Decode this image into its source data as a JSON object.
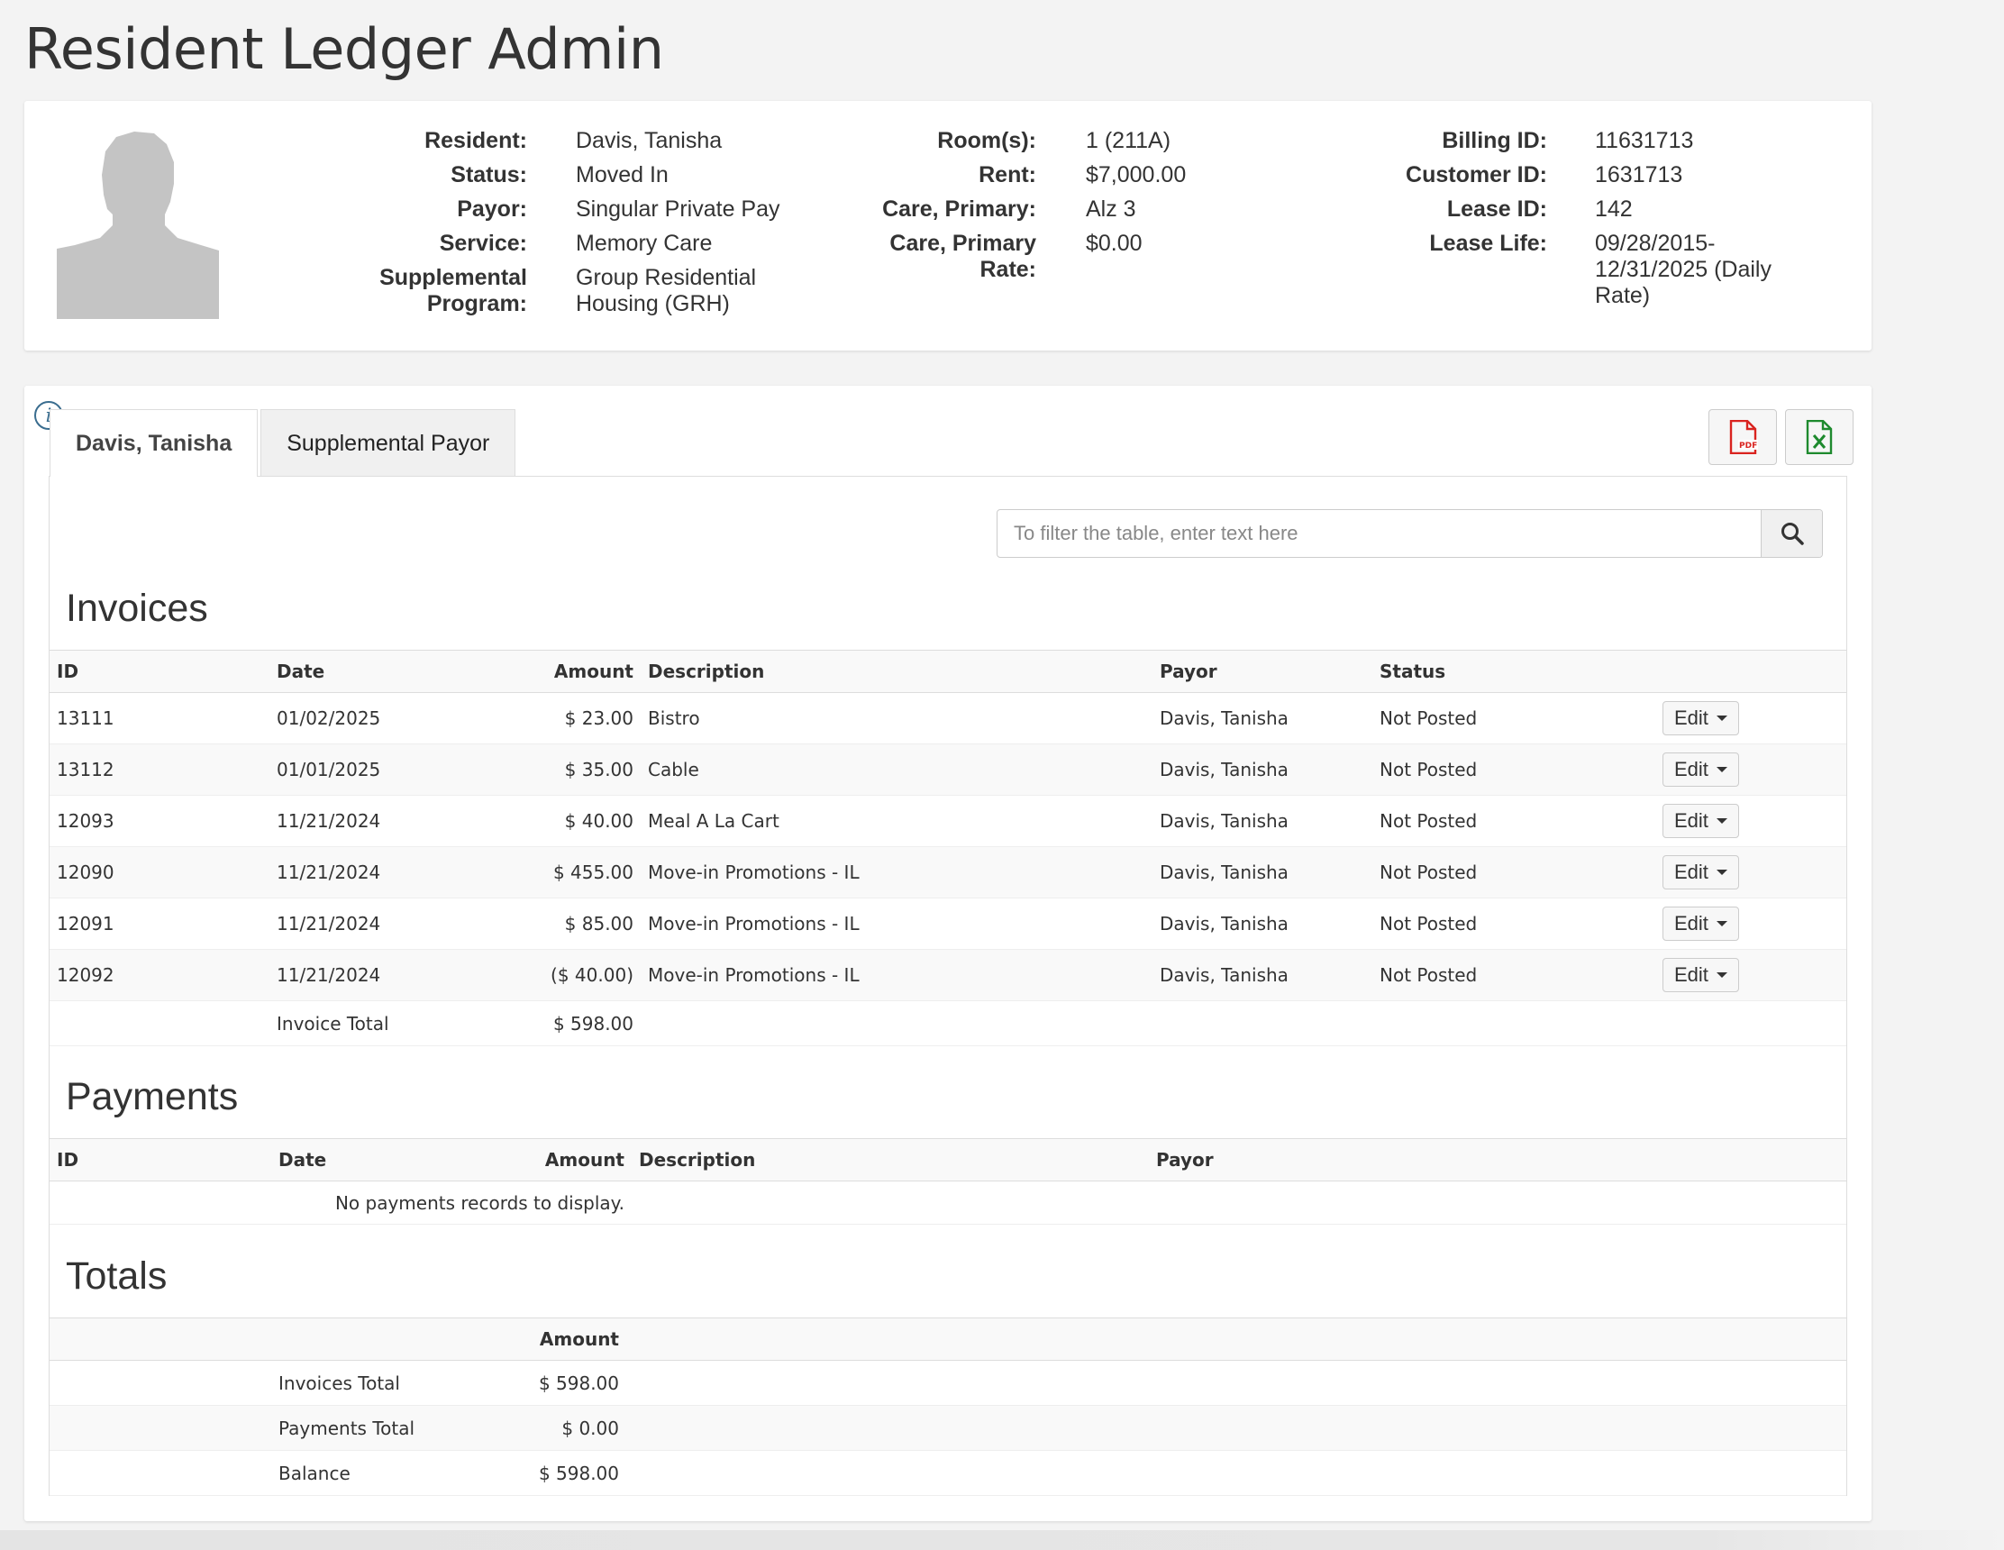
{
  "page": {
    "title": "Resident Ledger Admin"
  },
  "resident": {
    "col1": [
      {
        "label": "Resident:",
        "value": "Davis, Tanisha",
        "link": true
      },
      {
        "label": "Status:",
        "value": "Moved In"
      },
      {
        "label": "Payor:",
        "value": "Singular Private Pay"
      },
      {
        "label": "Service:",
        "value": "Memory Care"
      },
      {
        "label": "Supplemental Program:",
        "value": "Group Residential Housing (GRH)"
      }
    ],
    "col2": [
      {
        "label": "Room(s):",
        "value": "1 (211A)"
      },
      {
        "label": "Rent:",
        "value": "$7,000.00"
      },
      {
        "label": "Care, Primary:",
        "value": "Alz 3"
      },
      {
        "label": "Care, Primary Rate:",
        "value": "$0.00"
      }
    ],
    "col3": [
      {
        "label": "Billing ID:",
        "value": "11631713"
      },
      {
        "label": "Customer ID:",
        "value": "1631713"
      },
      {
        "label": "Lease ID:",
        "value": "142"
      },
      {
        "label": "Lease Life:",
        "value": "09/28/2015-12/31/2025 (Daily Rate)"
      }
    ]
  },
  "tabs": [
    {
      "label": "Davis, Tanisha",
      "active": true
    },
    {
      "label": "Supplemental Payor",
      "active": false
    }
  ],
  "toolbar": {
    "pdf_icon": "pdf-file-icon",
    "excel_icon": "excel-file-icon"
  },
  "filter": {
    "placeholder": "To filter the table, enter text here"
  },
  "invoices": {
    "title": "Invoices",
    "columns": [
      "ID",
      "Date",
      "Amount",
      "Description",
      "Payor",
      "Status"
    ],
    "rows": [
      {
        "id": "13111",
        "date": "01/02/2025",
        "amount": "$ 23.00",
        "description": "Bistro",
        "payor": "Davis, Tanisha",
        "status": "Not Posted"
      },
      {
        "id": "13112",
        "date": "01/01/2025",
        "amount": "$ 35.00",
        "description": "Cable",
        "payor": "Davis, Tanisha",
        "status": "Not Posted"
      },
      {
        "id": "12093",
        "date": "11/21/2024",
        "amount": "$ 40.00",
        "description": "Meal A La Cart",
        "payor": "Davis, Tanisha",
        "status": "Not Posted"
      },
      {
        "id": "12090",
        "date": "11/21/2024",
        "amount": "$ 455.00",
        "description": "Move-in Promotions - IL",
        "payor": "Davis, Tanisha",
        "status": "Not Posted"
      },
      {
        "id": "12091",
        "date": "11/21/2024",
        "amount": "$ 85.00",
        "description": "Move-in Promotions - IL",
        "payor": "Davis, Tanisha",
        "status": "Not Posted"
      },
      {
        "id": "12092",
        "date": "11/21/2024",
        "amount": "($ 40.00)",
        "description": "Move-in Promotions - IL",
        "payor": "Davis, Tanisha",
        "status": "Not Posted"
      }
    ],
    "edit_label": "Edit",
    "total_label": "Invoice Total",
    "total_value": "$ 598.00"
  },
  "payments": {
    "title": "Payments",
    "columns": [
      "ID",
      "Date",
      "Amount",
      "Description",
      "Payor"
    ],
    "empty_message": "No payments records to display."
  },
  "totals": {
    "title": "Totals",
    "amount_header": "Amount",
    "rows": [
      {
        "label": "Invoices Total",
        "value": "$ 598.00"
      },
      {
        "label": "Payments Total",
        "value": "$ 0.00"
      },
      {
        "label": "Balance",
        "value": "$ 598.00"
      }
    ]
  }
}
